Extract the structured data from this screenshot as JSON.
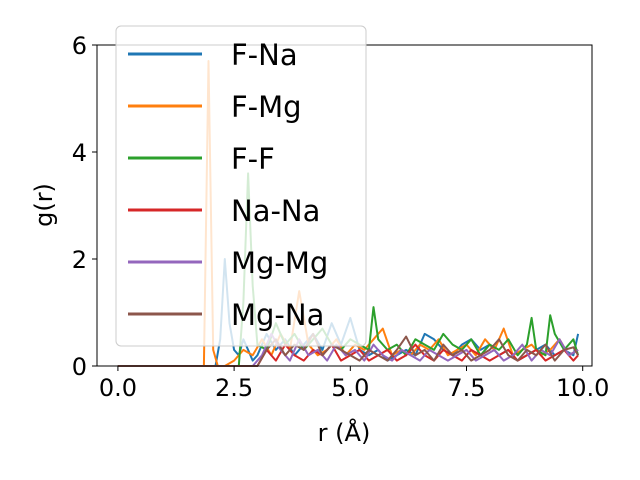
{
  "chart_data": {
    "type": "line",
    "xlabel": "r (Å)",
    "ylabel": "g(r)",
    "xlim": [
      -0.45,
      10.2
    ],
    "ylim": [
      0,
      6
    ],
    "xticks": [
      0.0,
      2.5,
      5.0,
      7.5,
      10.0
    ],
    "xtick_labels": [
      "0.0",
      "2.5",
      "5.0",
      "7.5",
      "10.0"
    ],
    "yticks": [
      0,
      2,
      4,
      6
    ],
    "ytick_labels": [
      "0",
      "2",
      "4",
      "6"
    ],
    "legend_position": "upper-left",
    "grid": false,
    "series": [
      {
        "name": "F-Na",
        "color": "#1f77b4",
        "x": [
          0.0,
          1.8,
          2.1,
          2.2,
          2.3,
          2.4,
          2.5,
          2.6,
          2.7,
          2.8,
          2.9,
          3.0,
          3.2,
          3.4,
          3.6,
          3.8,
          4.0,
          4.2,
          4.4,
          4.6,
          4.8,
          5.0,
          5.2,
          5.4,
          5.6,
          5.8,
          6.0,
          6.2,
          6.4,
          6.6,
          6.8,
          7.0,
          7.2,
          7.4,
          7.6,
          7.8,
          8.0,
          8.2,
          8.4,
          8.6,
          8.8,
          9.0,
          9.2,
          9.4,
          9.6,
          9.8,
          9.9
        ],
        "y": [
          0,
          0,
          0,
          0.5,
          2.0,
          0.8,
          0.3,
          0.2,
          0.5,
          0.3,
          0.1,
          0.2,
          0.6,
          0.3,
          0.5,
          0.2,
          0.4,
          0.6,
          0.3,
          0.8,
          0.4,
          0.9,
          0.3,
          0.2,
          0.3,
          0.1,
          0.2,
          0.3,
          0.2,
          0.6,
          0.5,
          0.3,
          0.2,
          0.4,
          0.5,
          0.3,
          0.4,
          0.2,
          0.3,
          0.1,
          0.2,
          0.3,
          0.4,
          0.2,
          0.3,
          0.2,
          0.6
        ]
      },
      {
        "name": "F-Mg",
        "color": "#ff7f0e",
        "x": [
          0.0,
          1.75,
          1.85,
          1.95,
          2.05,
          2.15,
          2.3,
          2.5,
          2.7,
          2.9,
          3.1,
          3.3,
          3.5,
          3.7,
          3.9,
          4.1,
          4.3,
          4.5,
          4.7,
          4.9,
          5.1,
          5.3,
          5.5,
          5.7,
          5.9,
          6.1,
          6.3,
          6.5,
          6.7,
          6.9,
          7.1,
          7.3,
          7.5,
          7.7,
          7.9,
          8.1,
          8.3,
          8.5,
          8.7,
          8.9,
          9.1,
          9.3,
          9.5,
          9.7,
          9.9
        ],
        "y": [
          0,
          0,
          0,
          5.7,
          0.3,
          0,
          0,
          0.1,
          0.3,
          0.2,
          0.5,
          0.2,
          0.6,
          0.3,
          1.4,
          0.4,
          0.2,
          0.3,
          0.5,
          0.2,
          0.4,
          0.3,
          0.5,
          0.7,
          0.2,
          0.3,
          0.2,
          0.4,
          0.3,
          0.5,
          0.2,
          0.3,
          0.4,
          0.2,
          0.5,
          0.3,
          0.7,
          0.2,
          0.3,
          0.4,
          0.2,
          0.3,
          0.5,
          0.2,
          0.3
        ]
      },
      {
        "name": "F-F",
        "color": "#2ca02c",
        "x": [
          0.0,
          2.5,
          2.6,
          2.7,
          2.8,
          2.9,
          3.0,
          3.2,
          3.4,
          3.6,
          3.8,
          4.0,
          4.2,
          4.4,
          4.6,
          4.8,
          5.0,
          5.2,
          5.4,
          5.5,
          5.6,
          5.8,
          6.0,
          6.2,
          6.4,
          6.6,
          6.8,
          7.0,
          7.2,
          7.4,
          7.6,
          7.8,
          8.0,
          8.2,
          8.4,
          8.6,
          8.8,
          8.9,
          9.0,
          9.2,
          9.3,
          9.4,
          9.6,
          9.8,
          9.9
        ],
        "y": [
          0,
          0,
          0,
          1.2,
          3.6,
          1.5,
          0.4,
          0.3,
          0.8,
          0.4,
          0.6,
          0.3,
          0.5,
          0.7,
          0.4,
          0.3,
          0.5,
          0.4,
          0.3,
          1.1,
          0.5,
          0.3,
          0.4,
          0.2,
          0.5,
          0.4,
          0.3,
          0.6,
          0.4,
          0.3,
          0.5,
          0.2,
          0.4,
          0.3,
          0.5,
          0.2,
          0.4,
          0.9,
          0.3,
          0.2,
          0.95,
          0.6,
          0.3,
          0.5,
          0.2
        ]
      },
      {
        "name": "Na-Na",
        "color": "#d62728",
        "x": [
          0.0,
          3.0,
          3.2,
          3.4,
          3.6,
          3.8,
          4.0,
          4.2,
          4.4,
          4.6,
          4.8,
          5.0,
          5.2,
          5.4,
          5.6,
          5.8,
          6.0,
          6.2,
          6.4,
          6.6,
          6.8,
          7.0,
          7.2,
          7.4,
          7.6,
          7.8,
          8.0,
          8.2,
          8.4,
          8.6,
          8.8,
          9.0,
          9.2,
          9.4,
          9.6,
          9.8,
          9.9
        ],
        "y": [
          0,
          0,
          0.3,
          0.1,
          0.4,
          0.2,
          0.1,
          0.3,
          0.2,
          0.4,
          0.1,
          0.2,
          0.3,
          0.1,
          0.2,
          0.3,
          0.1,
          0.2,
          0.4,
          0.2,
          0.1,
          0.3,
          0.2,
          0.1,
          0.3,
          0.2,
          0.1,
          0.2,
          0.3,
          0.1,
          0.2,
          0.3,
          0.1,
          0.2,
          0.3,
          0.1,
          0.2
        ]
      },
      {
        "name": "Mg-Mg",
        "color": "#9467bd",
        "x": [
          0.0,
          2.9,
          3.1,
          3.3,
          3.5,
          3.7,
          3.9,
          4.1,
          4.3,
          4.5,
          4.7,
          4.9,
          5.1,
          5.3,
          5.5,
          5.7,
          5.9,
          6.1,
          6.3,
          6.5,
          6.7,
          6.9,
          7.1,
          7.3,
          7.5,
          7.7,
          7.9,
          8.1,
          8.3,
          8.5,
          8.7,
          8.9,
          9.1,
          9.3,
          9.5,
          9.7,
          9.9
        ],
        "y": [
          0,
          0,
          0.2,
          0.6,
          0.3,
          0.1,
          0.5,
          0.2,
          0.3,
          0.1,
          0.4,
          0.2,
          0.3,
          0.1,
          0.4,
          0.2,
          0.1,
          0.3,
          0.2,
          0.1,
          0.3,
          0.2,
          0.1,
          0.2,
          0.3,
          0.1,
          0.2,
          0.3,
          0.1,
          0.2,
          0.4,
          0.1,
          0.3,
          0.2,
          0.5,
          0.2,
          0.3
        ]
      },
      {
        "name": "Mg-Na",
        "color": "#8c564b",
        "x": [
          0.0,
          3.0,
          3.2,
          3.4,
          3.6,
          3.8,
          4.0,
          4.2,
          4.4,
          4.6,
          4.8,
          5.0,
          5.2,
          5.4,
          5.6,
          5.8,
          6.0,
          6.2,
          6.4,
          6.6,
          6.8,
          7.0,
          7.2,
          7.4,
          7.6,
          7.8,
          8.0,
          8.2,
          8.4,
          8.6,
          8.8,
          9.0,
          9.2,
          9.4,
          9.6,
          9.8,
          9.9
        ],
        "y": [
          0,
          0,
          0.3,
          0.5,
          0.2,
          0.4,
          0.3,
          0.6,
          0.2,
          0.4,
          0.3,
          0.2,
          0.1,
          0.3,
          0.2,
          0.1,
          0.3,
          0.55,
          0.2,
          0.3,
          0.1,
          0.4,
          0.2,
          0.3,
          0.1,
          0.2,
          0.3,
          0.5,
          0.2,
          0.1,
          0.3,
          0.2,
          0.4,
          0.1,
          0.3,
          0.35,
          0.2
        ]
      }
    ]
  }
}
